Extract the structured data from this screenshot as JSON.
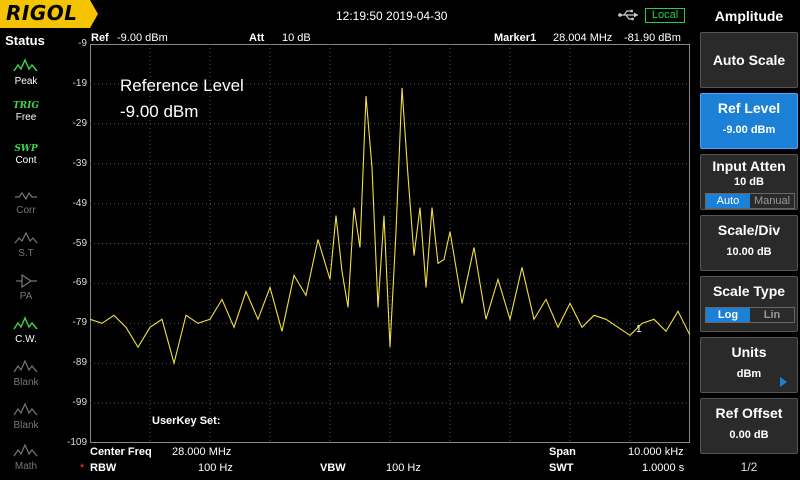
{
  "topbar": {
    "logo": "RIGOL",
    "datetime": "12:19:50 2019-04-30",
    "remote_status": "Local",
    "logo_color": "#f5c400"
  },
  "status_panel": {
    "title": "Status",
    "items": [
      {
        "top": "",
        "label": "Peak",
        "icon": "peak-wave-icon",
        "active": true
      },
      {
        "top": "TRIG",
        "label": "Free",
        "icon": "trig-icon",
        "active": true
      },
      {
        "top": "SWP",
        "label": "Cont",
        "icon": "sweep-icon",
        "active": true
      },
      {
        "top": "",
        "label": "Corr",
        "icon": "corr-icon",
        "active": false
      },
      {
        "top": "",
        "label": "S.T",
        "icon": "st-icon",
        "active": false
      },
      {
        "top": "",
        "label": "PA",
        "icon": "pa-icon",
        "active": false
      },
      {
        "top": "",
        "label": "C.W.",
        "icon": "cw-icon",
        "active": true
      },
      {
        "top": "",
        "label": "Blank",
        "icon": "blank-icon",
        "active": false
      },
      {
        "top": "",
        "label": "Blank",
        "icon": "blank-icon",
        "active": false
      },
      {
        "top": "",
        "label": "Math",
        "icon": "math-icon",
        "active": false
      }
    ]
  },
  "header": {
    "ref_label": "Ref",
    "ref_value": "-9.00 dBm",
    "att_label": "Att",
    "att_value": "10 dB",
    "marker_label": "Marker1",
    "marker_freq": "28.004 MHz",
    "marker_level": "-81.90 dBm"
  },
  "annotation": {
    "title": "Reference Level",
    "value": "-9.00 dBm",
    "userkey": "UserKey Set:"
  },
  "footer": {
    "center_label": "Center Freq",
    "center_value": "28.000 MHz",
    "span_label": "Span",
    "span_value": "10.000 kHz",
    "rbw_star": "*",
    "rbw_label": "RBW",
    "rbw_value": "100 Hz",
    "vbw_label": "VBW",
    "vbw_value": "100 Hz",
    "swt_label": "SWT",
    "swt_value": "1.0000 s"
  },
  "menu": {
    "title": "Amplitude",
    "auto_scale": "Auto Scale",
    "ref_level_label": "Ref Level",
    "ref_level_value": "-9.00 dBm",
    "input_atten_label": "Input Atten",
    "input_atten_value": "10 dB",
    "atten_auto": "Auto",
    "atten_manual": "Manual",
    "scale_div_label": "Scale/Div",
    "scale_div_value": "10.00 dB",
    "scale_type_label": "Scale Type",
    "scale_log": "Log",
    "scale_lin": "Lin",
    "units_label": "Units",
    "units_value": "dBm",
    "ref_offset_label": "Ref Offset",
    "ref_offset_value": "0.00 dB",
    "page": "1/2"
  },
  "chart_data": {
    "type": "line",
    "y_tick_labels": [
      "-9",
      "-19",
      "-29",
      "-39",
      "-49",
      "-59",
      "-69",
      "-79",
      "-89",
      "-99",
      "-109"
    ],
    "ylim": [
      -109,
      -9
    ],
    "xlim": [
      27.995,
      28.005
    ],
    "x_unit": "MHz",
    "y_unit": "dBm",
    "grid": true,
    "trace_color": "#f0e040",
    "marker": {
      "label": "1",
      "x": 28.004,
      "y": -81.9
    },
    "series": [
      {
        "x": [
          27.995,
          27.9952,
          27.9954,
          27.9956,
          27.9958,
          27.996,
          27.9962,
          27.9964,
          27.9966,
          27.9968,
          27.997,
          27.9972,
          27.9974,
          27.9976,
          27.9978,
          27.998,
          27.9982,
          27.9984,
          27.9986,
          27.9988,
          27.999,
          27.9991,
          27.9992,
          27.9993,
          27.9994,
          27.9995,
          27.9996,
          27.9997,
          27.9998,
          27.9999,
          28.0,
          28.0001,
          28.0002,
          28.0003,
          28.0004,
          28.0005,
          28.0006,
          28.0007,
          28.0008,
          28.0009,
          28.001,
          28.0012,
          28.0014,
          28.0016,
          28.0018,
          28.002,
          28.0022,
          28.0024,
          28.0026,
          28.0028,
          28.003,
          28.0032,
          28.0034,
          28.0036,
          28.0038,
          28.004,
          28.0042,
          28.0044,
          28.0046,
          28.0048,
          28.005
        ],
        "y": [
          -78,
          -79,
          -77,
          -80,
          -85,
          -80,
          -78,
          -89,
          -77,
          -79,
          -78,
          -73,
          -80,
          -71,
          -78,
          -70,
          -81,
          -67,
          -72,
          -58,
          -68,
          -52,
          -66,
          -75,
          -50,
          -60,
          -22,
          -40,
          -75,
          -52,
          -85,
          -56,
          -20,
          -42,
          -62,
          -50,
          -70,
          -50,
          -64,
          -63,
          -56,
          -74,
          -60,
          -78,
          -68,
          -78,
          -65,
          -78,
          -73,
          -80,
          -74,
          -80,
          -77,
          -78,
          -80,
          -82,
          -79,
          -78,
          -81,
          -76,
          -82
        ]
      }
    ]
  }
}
